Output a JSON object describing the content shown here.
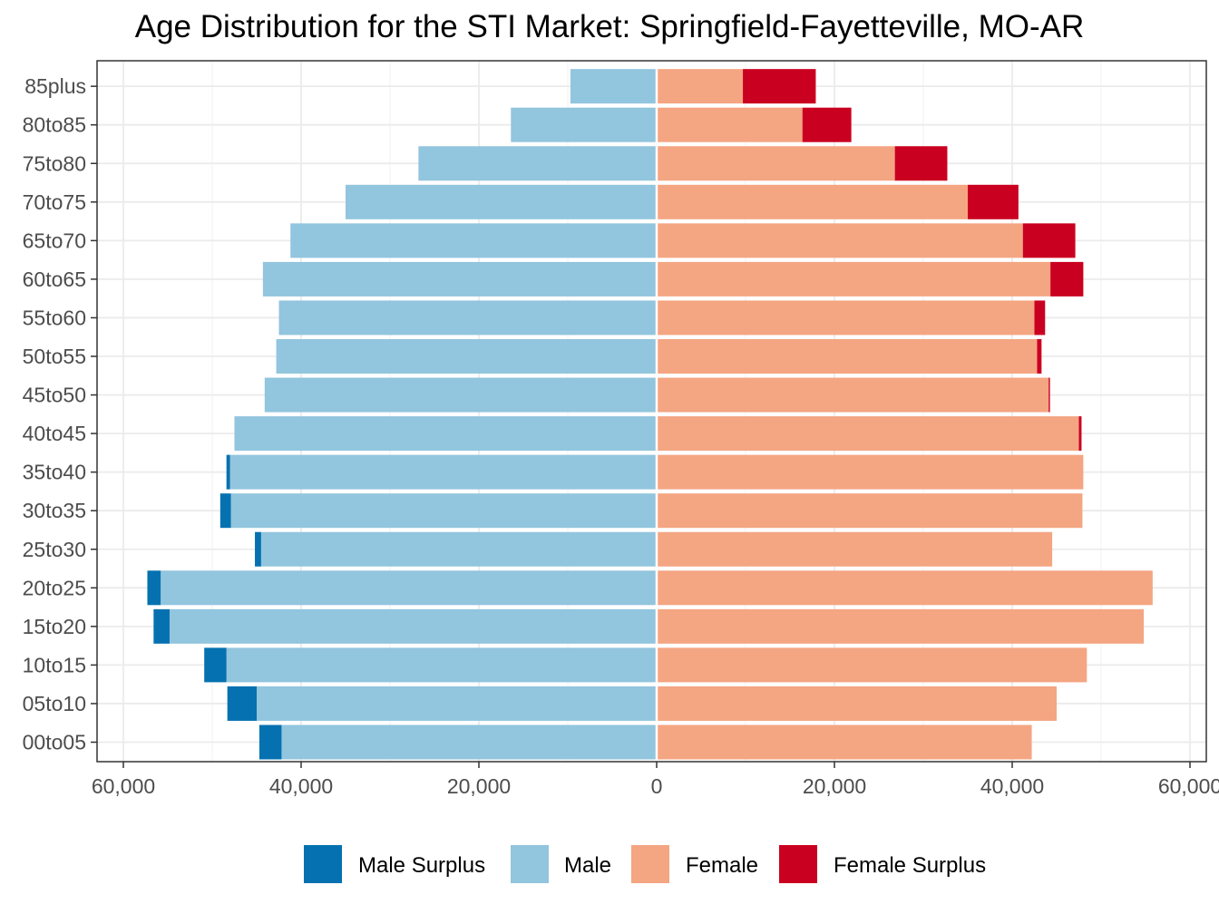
{
  "chart_data": {
    "type": "bar",
    "orientation": "horizontal",
    "title": "Age Distribution for the STI Market: Springfield-Fayetteville, MO-AR",
    "xlabel": "",
    "ylabel": "",
    "xlim": [
      -60000,
      60000
    ],
    "x_ticks": [
      -60000,
      -40000,
      -20000,
      0,
      20000,
      40000,
      60000
    ],
    "x_tick_labels": [
      "60,000",
      "40,000",
      "20,000",
      "0",
      "20,000",
      "40,000",
      "60,000"
    ],
    "grid": true,
    "legend_position": "bottom",
    "categories": [
      "00to05",
      "05to10",
      "10to15",
      "15to20",
      "20to25",
      "25to30",
      "30to35",
      "35to40",
      "40to45",
      "45to50",
      "50to55",
      "55to60",
      "60to65",
      "65to70",
      "70to75",
      "75to80",
      "80to85",
      "85plus"
    ],
    "series": [
      {
        "name": "Male Surplus",
        "color": "#0571b0",
        "side": "left",
        "values": [
          2500,
          3300,
          2500,
          1800,
          1500,
          700,
          1200,
          400,
          0,
          0,
          0,
          0,
          0,
          0,
          0,
          0,
          0,
          0
        ]
      },
      {
        "name": "Male",
        "color": "#92c5de",
        "side": "left",
        "values": [
          42200,
          45000,
          48400,
          54800,
          55800,
          44500,
          47900,
          48000,
          47500,
          44100,
          42800,
          42500,
          44300,
          41200,
          35000,
          26800,
          16400,
          9700
        ]
      },
      {
        "name": "Female",
        "color": "#f4a582",
        "side": "right",
        "values": [
          42200,
          45000,
          48400,
          54800,
          55800,
          44500,
          47900,
          48000,
          47500,
          44100,
          42800,
          42500,
          44300,
          41200,
          35000,
          26800,
          16400,
          9700
        ]
      },
      {
        "name": "Female Surplus",
        "color": "#ca0020",
        "side": "right",
        "values": [
          0,
          0,
          0,
          0,
          0,
          0,
          0,
          0,
          300,
          150,
          500,
          1200,
          3700,
          5900,
          5700,
          5900,
          5500,
          8200
        ]
      }
    ]
  }
}
